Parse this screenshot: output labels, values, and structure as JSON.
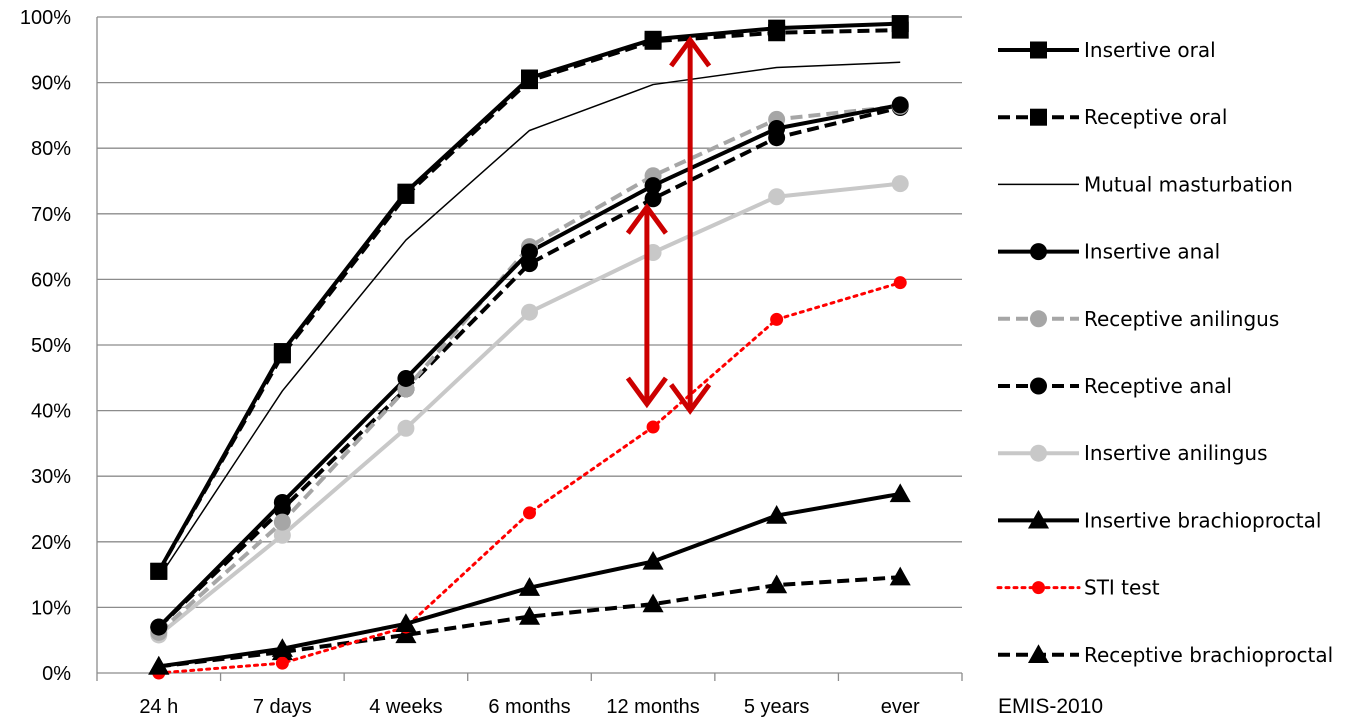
{
  "chart_data": {
    "type": "line",
    "categories": [
      "24 h",
      "7 days",
      "4 weeks",
      "6 months",
      "12 months",
      "5 years",
      "ever"
    ],
    "ylim": [
      0,
      100
    ],
    "yticks": [
      "0%",
      "10%",
      "20%",
      "30%",
      "40%",
      "50%",
      "60%",
      "70%",
      "80%",
      "90%",
      "100%"
    ],
    "grid": true,
    "legend_position": "right",
    "source_label": "EMIS-2010",
    "series": [
      {
        "name": "Insertive oral",
        "values": [
          15.5,
          49,
          73.3,
          90.7,
          96.6,
          98.3,
          99
        ],
        "color": "#000000",
        "dash": "solid",
        "width": 4,
        "marker": "square",
        "marker_color": "#000000"
      },
      {
        "name": "Receptive oral",
        "values": [
          15.5,
          48.5,
          72.8,
          90.3,
          96.3,
          97.6,
          98
        ],
        "color": "#000000",
        "dash": "dashed",
        "width": 4,
        "marker": "square",
        "marker_color": "#000000"
      },
      {
        "name": "Mutual masturbation",
        "values": [
          14.5,
          43,
          66,
          82.7,
          89.7,
          92.3,
          93.1
        ],
        "color": "#000000",
        "dash": "solid",
        "width": 1.5,
        "marker": "none",
        "marker_color": "#000000"
      },
      {
        "name": "Insertive anal",
        "values": [
          7,
          26,
          44.9,
          64.2,
          74.3,
          83,
          86.6
        ],
        "color": "#000000",
        "dash": "solid",
        "width": 4,
        "marker": "circle",
        "marker_color": "#000000"
      },
      {
        "name": "Receptive anilingus",
        "values": [
          6.2,
          23,
          43.3,
          65,
          75.8,
          84.4,
          86.4
        ],
        "color": "#a6a6a6",
        "dash": "dashed",
        "width": 4,
        "marker": "circle",
        "marker_color": "#a6a6a6"
      },
      {
        "name": "Receptive anal",
        "values": [
          7,
          25,
          43.3,
          62.4,
          72.3,
          81.6,
          86.2
        ],
        "color": "#000000",
        "dash": "dashed",
        "width": 4,
        "marker": "circle",
        "marker_color": "#000000"
      },
      {
        "name": "Insertive anilingus",
        "values": [
          5.8,
          21,
          37.3,
          55,
          64.1,
          72.6,
          74.6
        ],
        "color": "#c8c8c8",
        "dash": "solid",
        "width": 4,
        "marker": "circle",
        "marker_color": "#c8c8c8"
      },
      {
        "name": "Insertive brachioproctal",
        "values": [
          1,
          3.7,
          7.5,
          13,
          17,
          24,
          27.3
        ],
        "color": "#000000",
        "dash": "solid",
        "width": 4,
        "marker": "triangle",
        "marker_color": "#000000"
      },
      {
        "name": "STI test",
        "values": [
          0,
          1.5,
          7,
          24.4,
          37.5,
          53.9,
          59.5
        ],
        "color": "#ff0000",
        "dash": "dotted",
        "width": 3,
        "marker": "circle",
        "marker_color": "#ff0000"
      },
      {
        "name": "Receptive brachioproctal",
        "values": [
          1,
          3.2,
          5.8,
          8.6,
          10.5,
          13.4,
          14.6
        ],
        "color": "#000000",
        "dash": "dashed",
        "width": 4,
        "marker": "triangle",
        "marker_color": "#000000"
      }
    ],
    "annotations": [
      {
        "type": "double-arrow",
        "x_index": 4.3,
        "y_from": 40,
        "y_to": 96.5,
        "color": "#cc0000"
      },
      {
        "type": "double-arrow",
        "x_index": 3.95,
        "y_from": 41,
        "y_to": 71,
        "color": "#cc0000"
      }
    ]
  }
}
